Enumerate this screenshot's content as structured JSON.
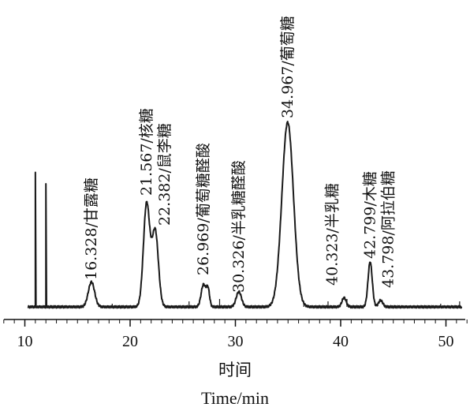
{
  "chart_data": {
    "type": "line",
    "title": "",
    "xlabel": "时间",
    "xlabel_en": "Time/min",
    "ylabel": "",
    "xlim": [
      8,
      52
    ],
    "x_ticks": [
      10,
      20,
      30,
      40,
      50
    ],
    "grid": false,
    "legend": "none",
    "line_color": "#1a1a1a",
    "spikes": [
      {
        "x": 11.0,
        "height": 0.47
      },
      {
        "x": 12.0,
        "height": 0.43
      }
    ],
    "peaks": [
      {
        "label": "16.328/甘露糖",
        "x": 16.328,
        "height": 0.087,
        "width": 0.3
      },
      {
        "label": "21.567/核糖",
        "x": 21.567,
        "height": 0.36,
        "width": 0.3
      },
      {
        "label": "22.382/鼠李糖",
        "x": 22.382,
        "height": 0.265,
        "width": 0.3
      },
      {
        "label": "26.969/葡萄糖醛酸",
        "x": 26.969,
        "height": 0.078,
        "width": 0.22
      },
      {
        "label": "30.326/半乳糖醛酸",
        "x": 30.326,
        "height": 0.053,
        "width": 0.25
      },
      {
        "label": "34.967/葡萄糖",
        "x": 34.967,
        "height": 0.645,
        "width": 0.55
      },
      {
        "label": "40.323/半乳糖",
        "x": 40.323,
        "height": 0.032,
        "width": 0.2
      },
      {
        "label": "42.799/木糖",
        "x": 42.799,
        "height": 0.157,
        "width": 0.2
      },
      {
        "label": "43.798/阿拉伯糖",
        "x": 43.798,
        "height": 0.023,
        "width": 0.2
      }
    ],
    "shoulders": [
      {
        "x": 27.4,
        "height": 0.06,
        "width": 0.15
      }
    ]
  }
}
